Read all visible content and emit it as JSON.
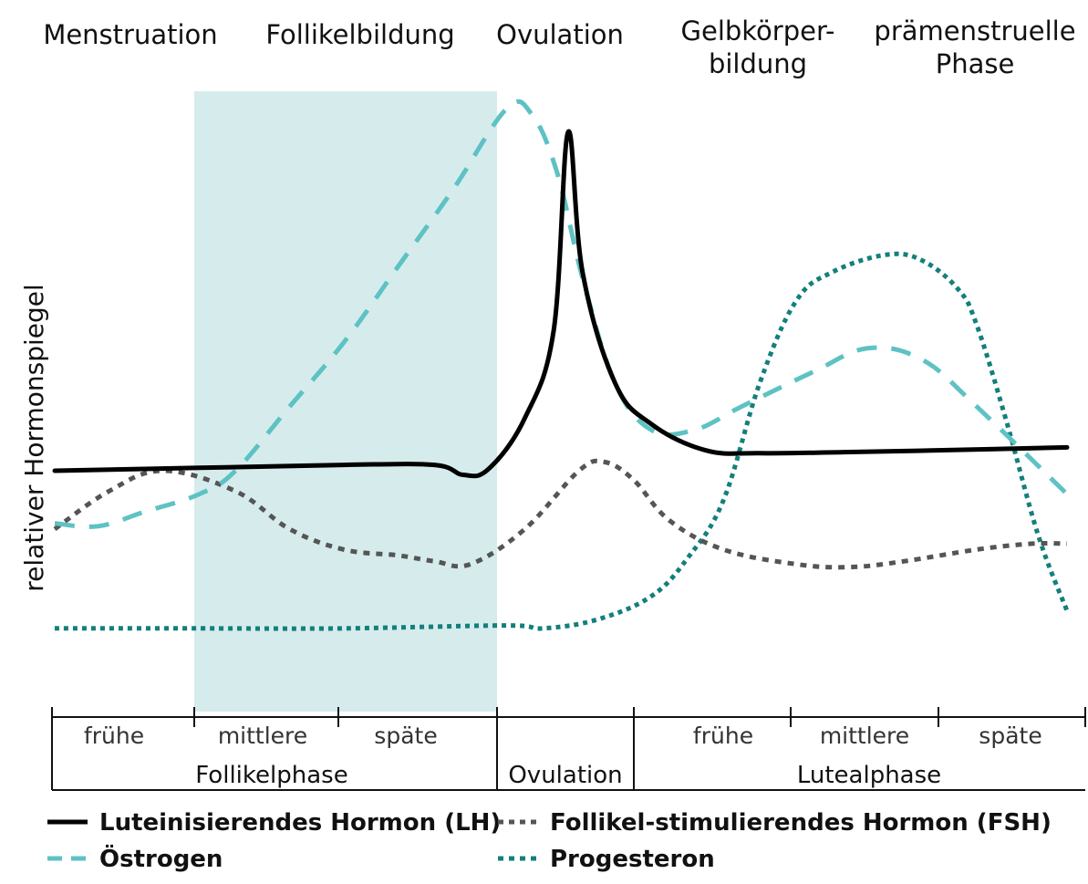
{
  "chart_data": {
    "type": "line",
    "title": "",
    "ylabel": "relativer Hormonspiegel",
    "x_range": [
      0,
      28
    ],
    "y_range": [
      0,
      100
    ],
    "phases_top": [
      "Menstruation",
      "Follikelbildung",
      "Ovulation",
      "Gelbkörper-\nbildung",
      "prämenstruelle\nPhase"
    ],
    "sub_phases": [
      "frühe",
      "mittlere",
      "späte",
      "frühe",
      "mittlere",
      "späte"
    ],
    "main_phases": [
      "Follikelphase",
      "Ovulation",
      "Lutealphase"
    ],
    "highlight_range": [
      4,
      12.5
    ],
    "colors": {
      "lh": "#000000",
      "estrogen": "#5ec2c4",
      "fsh": "#555555",
      "progesterone": "#147f7c",
      "highlight": "#d6ecec"
    },
    "series": [
      {
        "name": "Luteinisierendes Hormon (LH)",
        "key": "lh",
        "dash": "solid",
        "points": [
          [
            0,
            35
          ],
          [
            4,
            35.5
          ],
          [
            8,
            36
          ],
          [
            10.5,
            36
          ],
          [
            11.3,
            34.3
          ],
          [
            12,
            35.3
          ],
          [
            13,
            44
          ],
          [
            13.8,
            59
          ],
          [
            14.2,
            93
          ],
          [
            14.6,
            69
          ],
          [
            15.5,
            50
          ],
          [
            16.5,
            43
          ],
          [
            18,
            38.5
          ],
          [
            19.5,
            38
          ],
          [
            22,
            38.2
          ],
          [
            26,
            38.7
          ],
          [
            28,
            39
          ]
        ]
      },
      {
        "name": "Östrogen",
        "key": "estrogen",
        "dash": "dashed",
        "points": [
          [
            0,
            26
          ],
          [
            1.2,
            25.5
          ],
          [
            2.5,
            28
          ],
          [
            4,
            31
          ],
          [
            5,
            35
          ],
          [
            6.5,
            46
          ],
          [
            8,
            57
          ],
          [
            9.5,
            70
          ],
          [
            11,
            83
          ],
          [
            12.5,
            97
          ],
          [
            13.2,
            96
          ],
          [
            13.9,
            86
          ],
          [
            14.6,
            68
          ],
          [
            15.5,
            50
          ],
          [
            16.5,
            42
          ],
          [
            17.7,
            42
          ],
          [
            19,
            46
          ],
          [
            21,
            52
          ],
          [
            22.5,
            56
          ],
          [
            24,
            54
          ],
          [
            25.5,
            46
          ],
          [
            28,
            31
          ]
        ]
      },
      {
        "name": "Follikel-stimulierendes Hormon (FSH)",
        "key": "fsh",
        "dash": "dotted",
        "points": [
          [
            0,
            25
          ],
          [
            1.5,
            31.5
          ],
          [
            3,
            35
          ],
          [
            5,
            31.5
          ],
          [
            6.5,
            25
          ],
          [
            8,
            21.5
          ],
          [
            9.5,
            20.5
          ],
          [
            10.5,
            19.5
          ],
          [
            11.5,
            19
          ],
          [
            13,
            25
          ],
          [
            14.5,
            35
          ],
          [
            15.2,
            36.5
          ],
          [
            16,
            33.5
          ],
          [
            17,
            26.5
          ],
          [
            18.5,
            21.5
          ],
          [
            20.5,
            19
          ],
          [
            22,
            18.5
          ],
          [
            23.5,
            19.5
          ],
          [
            25.5,
            21.5
          ],
          [
            27,
            22.5
          ],
          [
            28,
            22.5
          ]
        ]
      },
      {
        "name": "Progesteron",
        "key": "progesterone",
        "dash": "dotted",
        "points": [
          [
            0,
            8
          ],
          [
            4,
            8
          ],
          [
            8,
            8
          ],
          [
            12.5,
            8.5
          ],
          [
            13.5,
            8
          ],
          [
            15,
            9.5
          ],
          [
            16.5,
            13.5
          ],
          [
            17.5,
            20
          ],
          [
            18.5,
            30
          ],
          [
            19.5,
            50
          ],
          [
            20.5,
            64
          ],
          [
            21.5,
            69
          ],
          [
            23,
            72
          ],
          [
            24,
            71
          ],
          [
            25,
            66
          ],
          [
            25.5,
            60
          ],
          [
            26.3,
            44
          ],
          [
            27.2,
            24
          ],
          [
            28,
            11
          ]
        ]
      }
    ],
    "legend_placement": "bottom"
  }
}
